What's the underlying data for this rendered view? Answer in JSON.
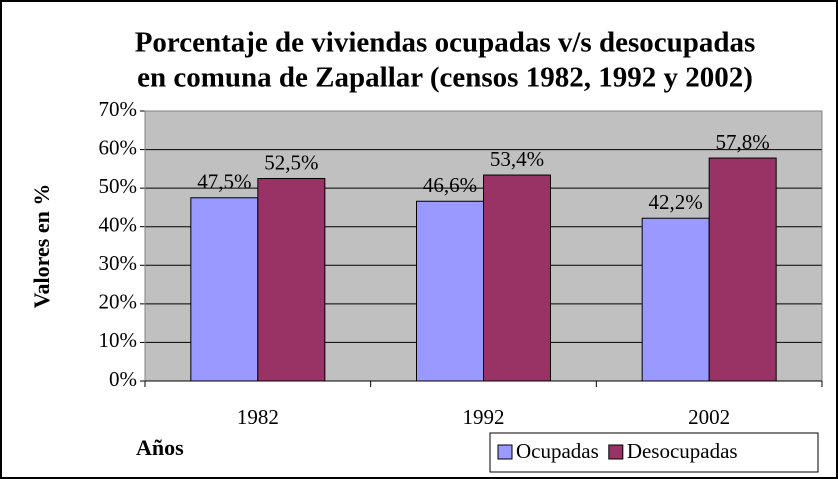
{
  "chart_data": {
    "type": "bar",
    "title": [
      "Porcentaje de viviendas ocupadas v/s desocupadas",
      "en comuna de Zapallar (censos 1982, 1992 y 2002)"
    ],
    "y_label": "Valores en %",
    "x_label": "Años",
    "categories": [
      "1982",
      "1992",
      "2002"
    ],
    "series": [
      {
        "name": "Ocupadas",
        "color": "#9999ff",
        "values": [
          47.5,
          46.6,
          42.2
        ],
        "value_labels": [
          "47,5%",
          "46,6%",
          "42,2%"
        ]
      },
      {
        "name": "Desocupadas",
        "color": "#993366",
        "values": [
          52.5,
          53.4,
          57.8
        ],
        "value_labels": [
          "52,5%",
          "53,4%",
          "57,8%"
        ]
      }
    ],
    "ylim": [
      0,
      70
    ],
    "yticks": [
      {
        "value": 0,
        "label": "0%"
      },
      {
        "value": 10,
        "label": "10%"
      },
      {
        "value": 20,
        "label": "20%"
      },
      {
        "value": 30,
        "label": "30%"
      },
      {
        "value": 40,
        "label": "40%"
      },
      {
        "value": 50,
        "label": "50%"
      },
      {
        "value": 60,
        "label": "60%"
      },
      {
        "value": 70,
        "label": "70%"
      }
    ],
    "grid": true,
    "legend": "bottom-right",
    "plot_background": "#c0c0c0"
  }
}
